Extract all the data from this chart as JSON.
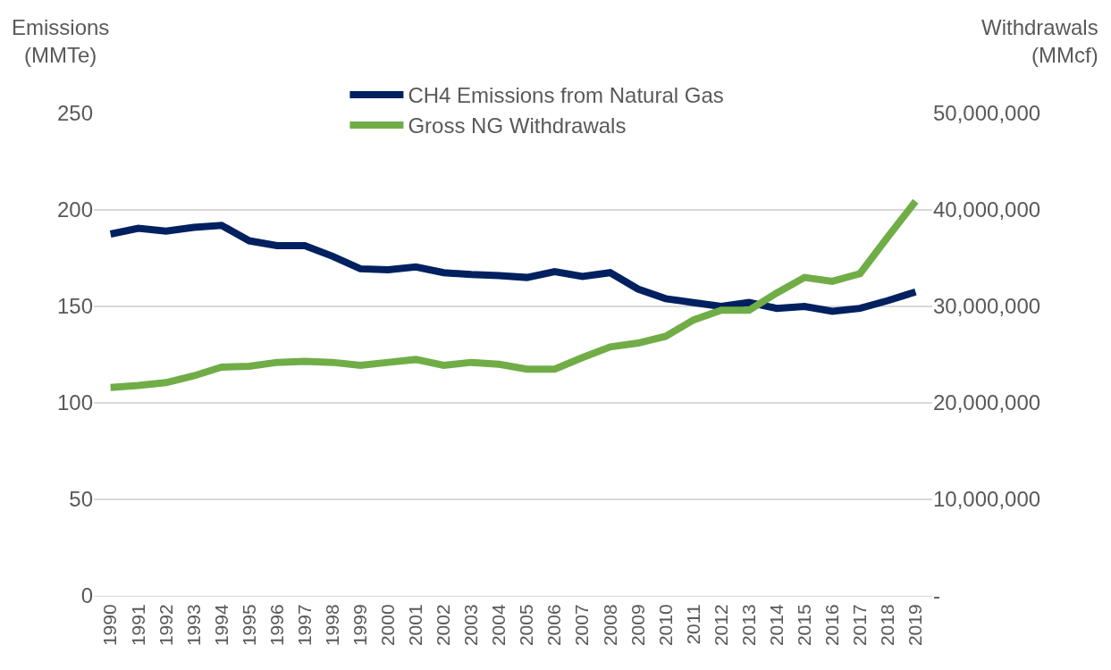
{
  "chart_data": {
    "type": "line",
    "ylabel": "Emissions\n(MMTe)",
    "y2label": "Withdrawals\n(MMcf)",
    "categories": [
      "1990",
      "1991",
      "1992",
      "1993",
      "1994",
      "1995",
      "1996",
      "1997",
      "1998",
      "1999",
      "2000",
      "2001",
      "2002",
      "2003",
      "2004",
      "2005",
      "2006",
      "2007",
      "2008",
      "2009",
      "2010",
      "2011",
      "2012",
      "2013",
      "2014",
      "2015",
      "2016",
      "2017",
      "2018",
      "2019"
    ],
    "series": [
      {
        "name": "CH4 Emissions from Natural Gas",
        "color": "#002060",
        "values": [
          187.5,
          190.5,
          189,
          191,
          192,
          184,
          181.5,
          181.5,
          176,
          169.5,
          169,
          170.5,
          167.5,
          166.5,
          166,
          165,
          168,
          165.5,
          167.5,
          159,
          154,
          152,
          150,
          152,
          149,
          150,
          147.5,
          149,
          153,
          157.5
        ]
      },
      {
        "name": "Gross NG Withdrawals",
        "color": "#70ad47",
        "axis": "y2",
        "values": [
          21600000,
          21800000,
          22100000,
          22800000,
          23700000,
          23800000,
          24200000,
          24300000,
          24200000,
          23900000,
          24200000,
          24500000,
          23900000,
          24200000,
          24000000,
          23500000,
          23500000,
          24700000,
          25800000,
          26200000,
          26900000,
          28600000,
          29600000,
          29600000,
          31400000,
          33000000,
          32600000,
          33400000,
          37200000,
          40900000
        ]
      }
    ],
    "ylim": [
      0,
      250
    ],
    "yticks": [
      0,
      50,
      100,
      150,
      200,
      250
    ],
    "y2lim": [
      0,
      50000000
    ],
    "y2ticks": [
      {
        "value": 0,
        "label": "-"
      },
      {
        "value": 10000000,
        "label": "10,000,000"
      },
      {
        "value": 20000000,
        "label": "20,000,000"
      },
      {
        "value": 30000000,
        "label": "30,000,000"
      },
      {
        "value": 40000000,
        "label": "40,000,000"
      },
      {
        "value": 50000000,
        "label": "50,000,000"
      }
    ],
    "grid": "y",
    "legend": "top",
    "marker": "none",
    "line_style": "solid"
  }
}
